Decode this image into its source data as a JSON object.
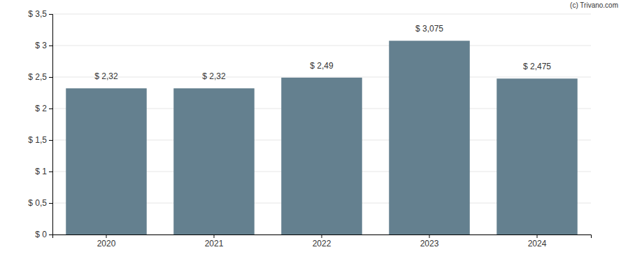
{
  "chart_data": {
    "type": "bar",
    "annotations": [
      "(c) Trivano.com"
    ],
    "categories": [
      "2020",
      "2021",
      "2022",
      "2023",
      "2024"
    ],
    "values": [
      2.32,
      2.32,
      2.49,
      3.075,
      2.475
    ],
    "value_labels": [
      "$ 2,32",
      "$ 2,32",
      "$ 2,49",
      "$ 3,075",
      "$ 2,475"
    ],
    "color": "#64808f",
    "ylim": [
      0,
      3.5
    ],
    "yticks": [
      {
        "value": 0,
        "label": "$ 0"
      },
      {
        "value": 0.5,
        "label": "$ 0,5"
      },
      {
        "value": 1,
        "label": "$ 1"
      },
      {
        "value": 1.5,
        "label": "$ 1,5"
      },
      {
        "value": 2,
        "label": "$ 2"
      },
      {
        "value": 2.5,
        "label": "$ 2,5"
      },
      {
        "value": 3,
        "label": "$ 3"
      },
      {
        "value": 3.5,
        "label": "$ 3,5"
      }
    ],
    "grid": true,
    "data_labels": true
  }
}
